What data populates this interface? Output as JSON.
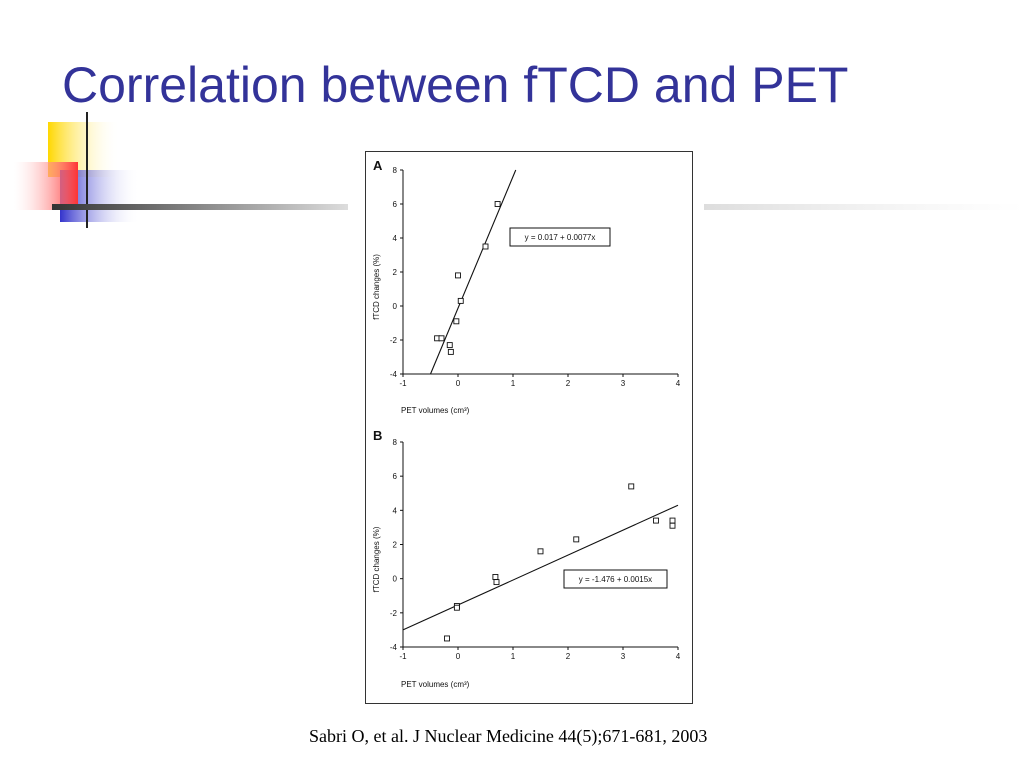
{
  "slide": {
    "title": "Correlation between fTCD and PET",
    "citation": "Sabri O, et al. J Nuclear Medicine 44(5);671-681, 2003"
  },
  "colors": {
    "title": "#333399",
    "accent_yellow": "#ffd700",
    "accent_red": "#ff3333",
    "accent_blue": "#3333cc"
  },
  "chart_data": [
    {
      "type": "scatter",
      "panel_label": "A",
      "xlabel": "PET volumes (cm³)",
      "ylabel": "fTCD changes (%)",
      "xlim": [
        -1,
        4
      ],
      "ylim": [
        -4,
        8
      ],
      "x_ticks": [
        "-1",
        "0",
        "1",
        "2",
        "3",
        "4"
      ],
      "y_ticks": [
        "-4",
        "-2",
        "0",
        "2",
        "4",
        "6",
        "8"
      ],
      "equation": "y = 0.017 + 0.0077x",
      "points": [
        {
          "x": -0.38,
          "y": -1.9
        },
        {
          "x": -0.3,
          "y": -1.9
        },
        {
          "x": -0.15,
          "y": -2.3
        },
        {
          "x": -0.13,
          "y": -2.7
        },
        {
          "x": -0.03,
          "y": -0.9
        },
        {
          "x": 0.0,
          "y": 1.8
        },
        {
          "x": 0.05,
          "y": 0.3
        },
        {
          "x": 0.5,
          "y": 3.5
        },
        {
          "x": 0.72,
          "y": 6.0
        }
      ],
      "fit_line": [
        [
          -0.5,
          -4.0
        ],
        [
          1.05,
          8.0
        ]
      ]
    },
    {
      "type": "scatter",
      "panel_label": "B",
      "xlabel": "PET volumes (cm³)",
      "ylabel": "fTCD changes (%)",
      "xlim": [
        -1,
        4
      ],
      "ylim": [
        -4,
        8
      ],
      "x_ticks": [
        "-1",
        "0",
        "1",
        "2",
        "3",
        "4"
      ],
      "y_ticks": [
        "-4",
        "-2",
        "0",
        "2",
        "4",
        "6",
        "8"
      ],
      "equation": "y = -1.476 + 0.0015x",
      "points": [
        {
          "x": -0.2,
          "y": -3.5
        },
        {
          "x": -0.02,
          "y": -1.6
        },
        {
          "x": -0.02,
          "y": -1.7
        },
        {
          "x": 0.68,
          "y": 0.1
        },
        {
          "x": 0.7,
          "y": -0.2
        },
        {
          "x": 1.5,
          "y": 1.6
        },
        {
          "x": 2.15,
          "y": 2.3
        },
        {
          "x": 3.15,
          "y": 5.4
        },
        {
          "x": 3.6,
          "y": 3.4
        },
        {
          "x": 3.9,
          "y": 3.4
        },
        {
          "x": 3.9,
          "y": 3.1
        }
      ],
      "fit_line": [
        [
          -1.0,
          -3.0
        ],
        [
          4.0,
          4.3
        ]
      ]
    }
  ]
}
